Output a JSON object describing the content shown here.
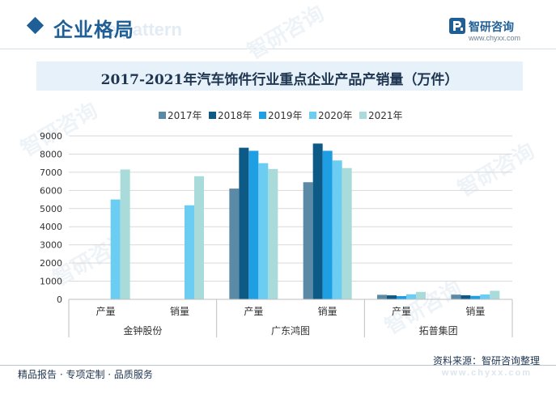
{
  "header": {
    "title": "企业格局",
    "subtitle_watermark": "e pattern"
  },
  "brand": {
    "logo_icon": "zhiyan-logo-icon",
    "name": "智研咨询",
    "url": "www.chyxx.com"
  },
  "watermark_text": "智研咨询",
  "footer": {
    "tagline": "精品报告 · 专项定制 · 品质服务",
    "source": "资料来源：智研咨询整理",
    "url_watermark": "www.chyxx.com"
  },
  "colors": {
    "brand": "#1f5f95",
    "grid": "#d9d9d9"
  },
  "chart_data": {
    "type": "bar",
    "title": "2017-2021年汽车饰件行业重点企业产品产销量（万件）",
    "xlabel": "",
    "ylabel": "",
    "ylim": [
      0,
      9000
    ],
    "yticks": [
      0,
      1000,
      2000,
      3000,
      4000,
      5000,
      6000,
      7000,
      8000,
      9000
    ],
    "grid": true,
    "legend_position": "top",
    "groups": [
      {
        "name": "金钟股份",
        "categories": [
          "产量",
          "销量"
        ]
      },
      {
        "name": "广东鸿图",
        "categories": [
          "产量",
          "销量"
        ]
      },
      {
        "name": "拓普集团",
        "categories": [
          "产量",
          "销量"
        ]
      }
    ],
    "series": [
      {
        "name": "2017年",
        "color": "#5b8aa6",
        "values": [
          null,
          null,
          6100,
          6450,
          250,
          260
        ]
      },
      {
        "name": "2018年",
        "color": "#0e5a86",
        "values": [
          null,
          null,
          8350,
          8580,
          220,
          225
        ]
      },
      {
        "name": "2019年",
        "color": "#1e9fe3",
        "values": [
          null,
          null,
          8180,
          8180,
          180,
          190
        ]
      },
      {
        "name": "2020年",
        "color": "#6ccdf2",
        "values": [
          5500,
          5180,
          7500,
          7650,
          280,
          270
        ]
      },
      {
        "name": "2021年",
        "color": "#a8dbd9",
        "values": [
          7150,
          6780,
          7180,
          7230,
          410,
          470
        ]
      }
    ]
  }
}
